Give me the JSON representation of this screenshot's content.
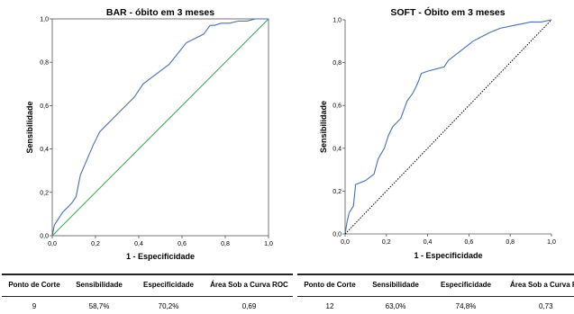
{
  "chart_data": [
    {
      "type": "line",
      "title": "BAR - óbito em 3 meses",
      "xlabel": "1 - Especificidade",
      "ylabel": "Sensibilidade",
      "xlim": [
        0,
        1
      ],
      "ylim": [
        0,
        1
      ],
      "xticks": [
        "0,0",
        "0,2",
        "0,4",
        "0,6",
        "0,8",
        "1,0"
      ],
      "yticks": [
        "0,0",
        "0,2",
        "0,4",
        "0,6",
        "0,8",
        "1,0"
      ],
      "grid": false,
      "series": [
        {
          "color": "#4a6fb5",
          "x": [
            0,
            0.01,
            0.03,
            0.05,
            0.07,
            0.09,
            0.11,
            0.13,
            0.16,
            0.19,
            0.22,
            0.26,
            0.3,
            0.34,
            0.38,
            0.42,
            0.46,
            0.5,
            0.54,
            0.58,
            0.62,
            0.66,
            0.7,
            0.73,
            0.75,
            0.78,
            0.82,
            0.86,
            0.9,
            0.94,
            1.0
          ],
          "y": [
            0,
            0.05,
            0.08,
            0.11,
            0.13,
            0.15,
            0.18,
            0.28,
            0.35,
            0.42,
            0.48,
            0.52,
            0.56,
            0.6,
            0.64,
            0.7,
            0.73,
            0.76,
            0.79,
            0.84,
            0.89,
            0.91,
            0.93,
            0.97,
            0.97,
            0.98,
            0.98,
            0.99,
            0.99,
            1.0,
            1.0
          ]
        },
        {
          "color": "#2aa84a",
          "x": [
            0,
            1
          ],
          "y": [
            0,
            1
          ]
        }
      ]
    },
    {
      "type": "line",
      "title": "SOFT - Óbito em 3 meses",
      "xlabel": "1 - Especificidade",
      "ylabel": "Sensibilidade",
      "xlim": [
        0,
        1
      ],
      "ylim": [
        0,
        1
      ],
      "xticks": [
        "0,0",
        "0,2",
        "0,4",
        "0,6",
        "0,8",
        "1,0"
      ],
      "yticks": [
        "0,0",
        "0,2",
        "0,4",
        "0,6",
        "0,8",
        "1,0"
      ],
      "grid": false,
      "series": [
        {
          "color": "#4a6fb5",
          "x": [
            0,
            0.01,
            0.02,
            0.04,
            0.05,
            0.05,
            0.1,
            0.14,
            0.16,
            0.19,
            0.21,
            0.23,
            0.27,
            0.3,
            0.33,
            0.35,
            0.37,
            0.4,
            0.44,
            0.48,
            0.5,
            0.54,
            0.58,
            0.62,
            0.66,
            0.7,
            0.75,
            0.8,
            0.85,
            0.9,
            0.95,
            1.0
          ],
          "y": [
            0,
            0.06,
            0.1,
            0.13,
            0.22,
            0.23,
            0.25,
            0.28,
            0.35,
            0.4,
            0.46,
            0.5,
            0.54,
            0.62,
            0.66,
            0.7,
            0.75,
            0.76,
            0.77,
            0.78,
            0.81,
            0.84,
            0.87,
            0.9,
            0.92,
            0.94,
            0.96,
            0.97,
            0.98,
            0.99,
            0.99,
            1.0
          ]
        },
        {
          "color": "#000000",
          "dashed": true,
          "x": [
            0,
            1
          ],
          "y": [
            0,
            1
          ]
        }
      ]
    }
  ],
  "tables": [
    {
      "headers": [
        "Ponto de Corte",
        "Sensibilidade",
        "Especificidade",
        "Área Sob a Curva ROC"
      ],
      "row": [
        "9",
        "58,7%",
        "70,2%",
        "0,69"
      ]
    },
    {
      "headers": [
        "Ponto de Corte",
        "Sensibilidade",
        "Especificidade",
        "Área Sob a Curva ROC"
      ],
      "row": [
        "12",
        "63,0%",
        "74,8%",
        "0,73"
      ]
    }
  ]
}
